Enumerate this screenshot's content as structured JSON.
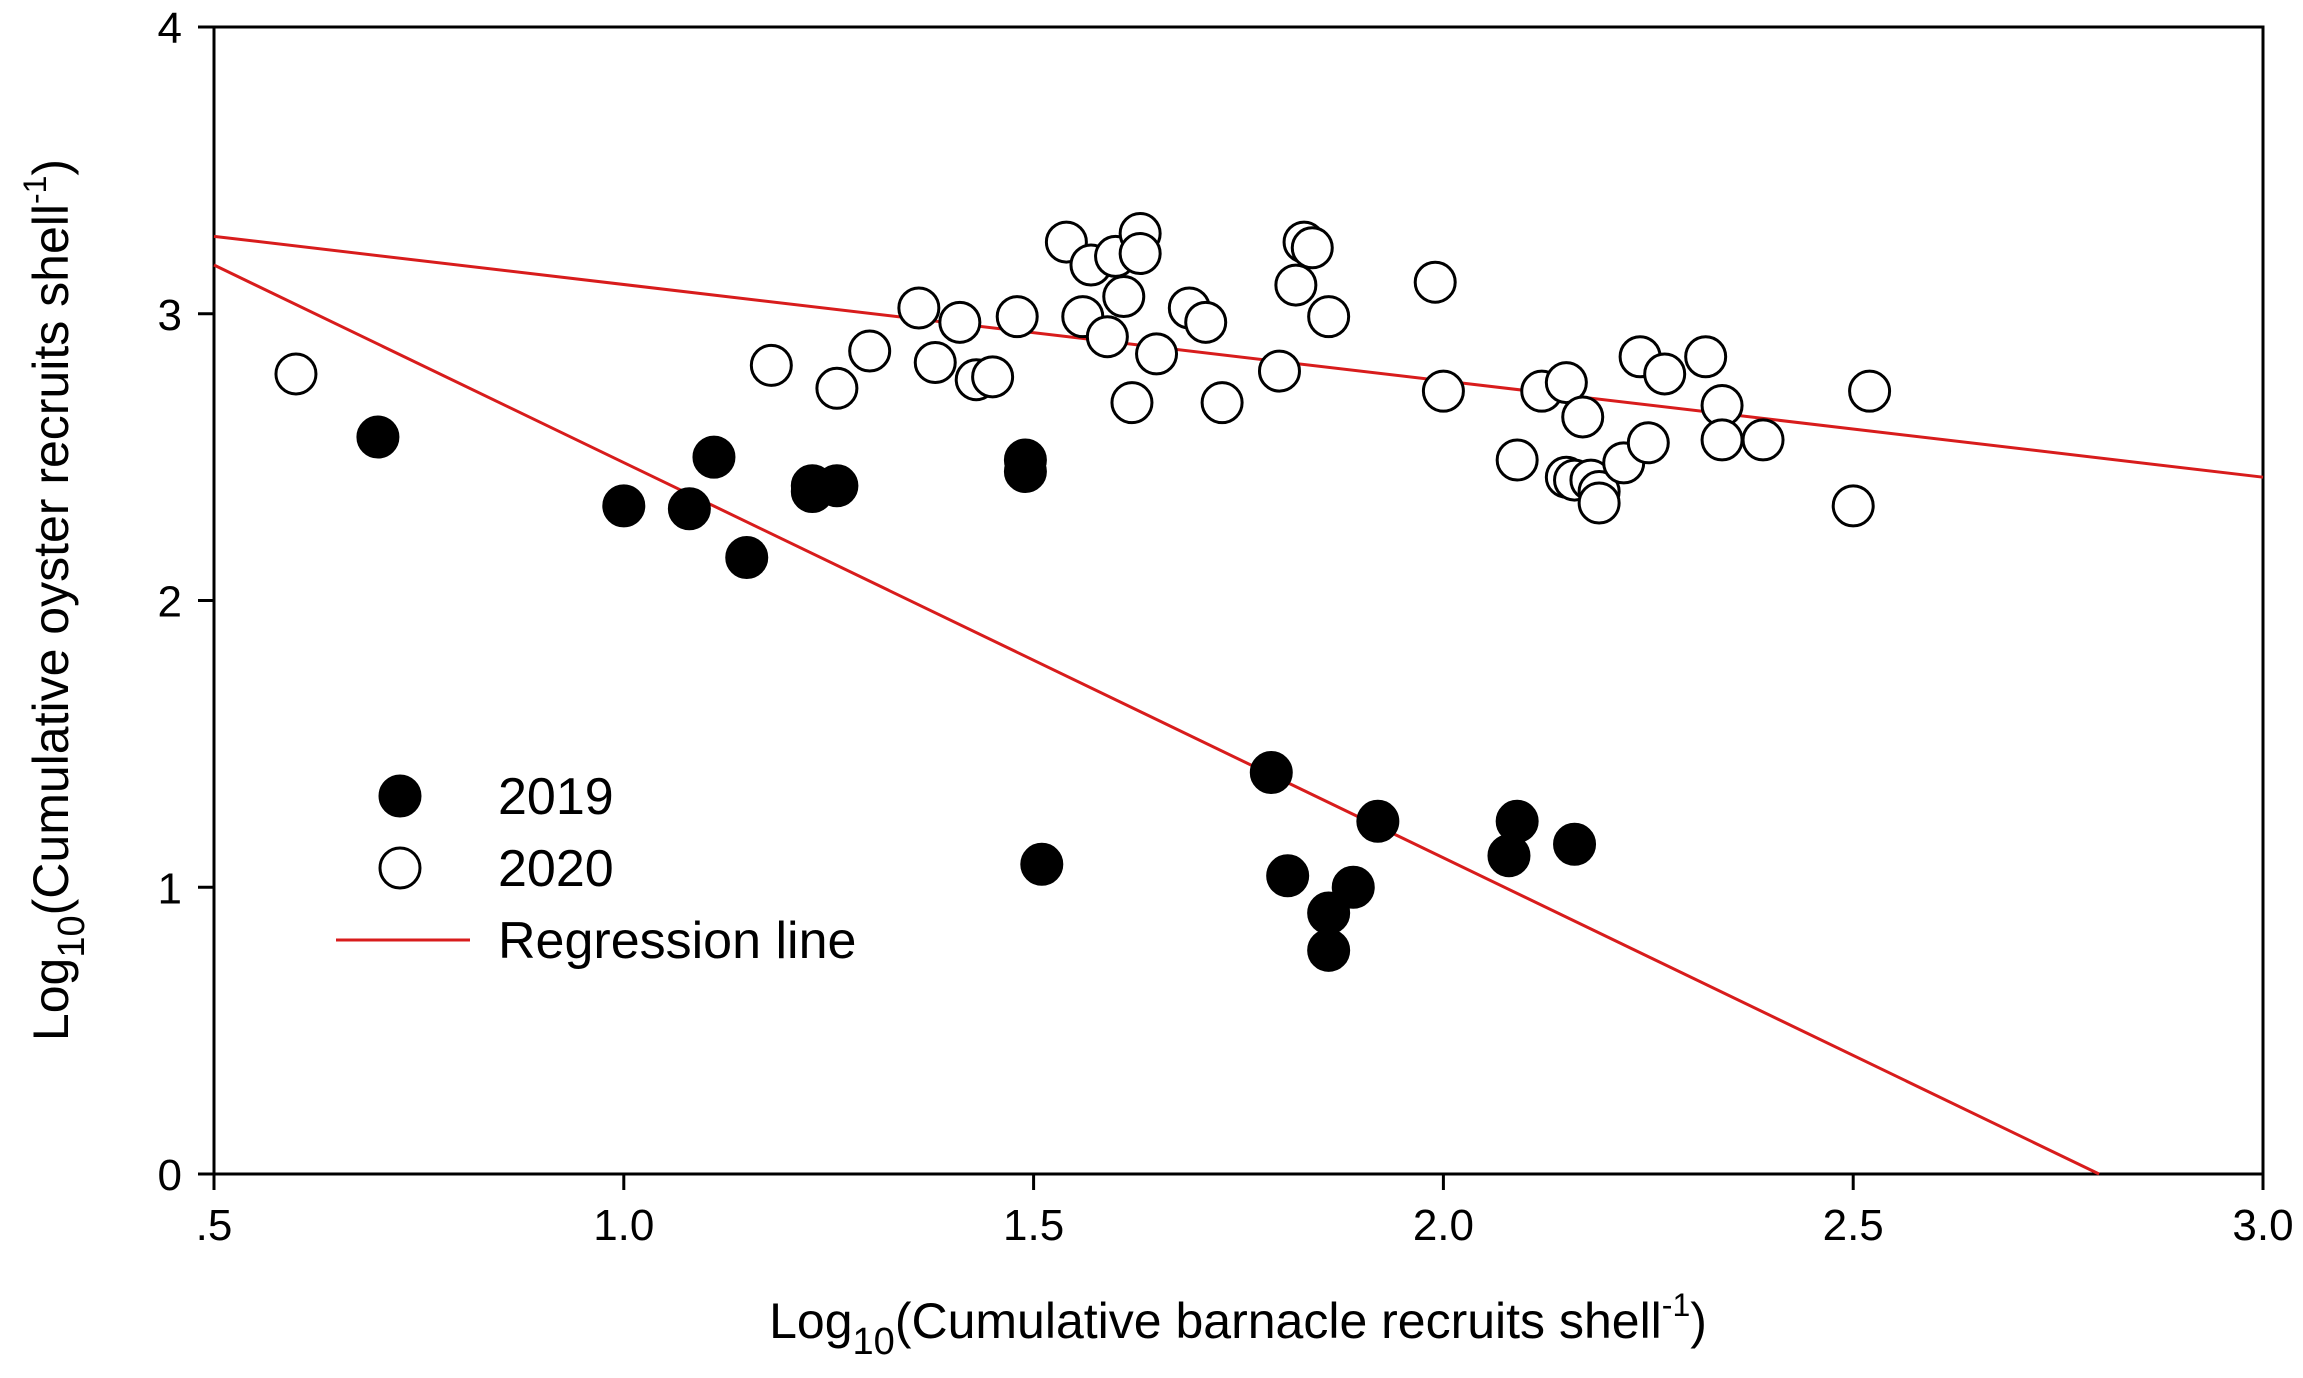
{
  "chart_data": {
    "type": "scatter",
    "title": "",
    "xlabel": {
      "prefix": "Log",
      "subscript": "10",
      "main": "(Cumulative barnacle recruits shell",
      "superscript": "-1",
      "suffix": ")"
    },
    "ylabel": {
      "prefix": "Log",
      "subscript": "10",
      "main": "(Cumulative oyster recruits shell",
      "superscript": "-1",
      "suffix": ")"
    },
    "xlim": [
      0.5,
      3.0
    ],
    "ylim": [
      0,
      4
    ],
    "xticks": [
      {
        "value": 0.5,
        "label": ".5"
      },
      {
        "value": 1.0,
        "label": "1.0"
      },
      {
        "value": 1.5,
        "label": "1.5"
      },
      {
        "value": 2.0,
        "label": "2.0"
      },
      {
        "value": 2.5,
        "label": "2.5"
      },
      {
        "value": 3.0,
        "label": "3.0"
      }
    ],
    "yticks": [
      {
        "value": 0,
        "label": "0"
      },
      {
        "value": 1,
        "label": "1"
      },
      {
        "value": 2,
        "label": "2"
      },
      {
        "value": 3,
        "label": "3"
      },
      {
        "value": 4,
        "label": "4"
      }
    ],
    "grid": false,
    "legend_position": "lower-left",
    "series": [
      {
        "name": "2019",
        "marker": "filled-circle",
        "color": "#000000",
        "points": [
          [
            0.7,
            2.57
          ],
          [
            1.0,
            2.33
          ],
          [
            1.08,
            2.32
          ],
          [
            1.11,
            2.5
          ],
          [
            1.15,
            2.15
          ],
          [
            1.23,
            2.38
          ],
          [
            1.23,
            2.4
          ],
          [
            1.26,
            2.4
          ],
          [
            1.49,
            2.49
          ],
          [
            1.49,
            2.45
          ],
          [
            1.51,
            1.08
          ],
          [
            1.79,
            1.4
          ],
          [
            1.81,
            1.04
          ],
          [
            1.86,
            0.91
          ],
          [
            1.86,
            0.78
          ],
          [
            1.89,
            1.0
          ],
          [
            1.92,
            1.23
          ],
          [
            2.08,
            1.11
          ],
          [
            2.09,
            1.23
          ],
          [
            2.16,
            1.15
          ]
        ]
      },
      {
        "name": "2020",
        "marker": "open-circle",
        "color": "#000000",
        "points": [
          [
            0.6,
            2.79
          ],
          [
            1.18,
            2.82
          ],
          [
            1.26,
            2.74
          ],
          [
            1.3,
            2.87
          ],
          [
            1.36,
            3.02
          ],
          [
            1.38,
            2.83
          ],
          [
            1.41,
            2.97
          ],
          [
            1.43,
            2.77
          ],
          [
            1.45,
            2.78
          ],
          [
            1.48,
            2.99
          ],
          [
            1.54,
            3.25
          ],
          [
            1.56,
            2.99
          ],
          [
            1.57,
            3.17
          ],
          [
            1.59,
            2.92
          ],
          [
            1.6,
            3.2
          ],
          [
            1.61,
            3.06
          ],
          [
            1.62,
            2.69
          ],
          [
            1.63,
            3.28
          ],
          [
            1.63,
            3.21
          ],
          [
            1.65,
            2.86
          ],
          [
            1.69,
            3.02
          ],
          [
            1.71,
            2.97
          ],
          [
            1.73,
            2.69
          ],
          [
            1.8,
            2.8
          ],
          [
            1.82,
            3.1
          ],
          [
            1.83,
            3.25
          ],
          [
            1.84,
            3.23
          ],
          [
            1.86,
            2.99
          ],
          [
            1.99,
            3.11
          ],
          [
            2.0,
            2.73
          ],
          [
            2.09,
            2.49
          ],
          [
            2.12,
            2.73
          ],
          [
            2.15,
            2.76
          ],
          [
            2.15,
            2.43
          ],
          [
            2.16,
            2.42
          ],
          [
            2.17,
            2.64
          ],
          [
            2.18,
            2.42
          ],
          [
            2.19,
            2.38
          ],
          [
            2.19,
            2.34
          ],
          [
            2.22,
            2.48
          ],
          [
            2.24,
            2.85
          ],
          [
            2.25,
            2.55
          ],
          [
            2.27,
            2.79
          ],
          [
            2.32,
            2.85
          ],
          [
            2.34,
            2.68
          ],
          [
            2.34,
            2.56
          ],
          [
            2.39,
            2.56
          ],
          [
            2.5,
            2.33
          ],
          [
            2.52,
            2.73
          ]
        ]
      }
    ],
    "regression_lines": [
      {
        "series": "2019",
        "color": "#d81c1c",
        "x": [
          0.5,
          2.8
        ],
        "y": [
          3.17,
          0.0
        ]
      },
      {
        "series": "2020",
        "color": "#d81c1c",
        "x": [
          0.5,
          3.0
        ],
        "y": [
          3.27,
          2.43
        ]
      }
    ],
    "legend": [
      {
        "label": "2019",
        "marker": "filled-circle"
      },
      {
        "label": "2020",
        "marker": "open-circle"
      },
      {
        "label": "Regression line",
        "marker": "line",
        "color": "#d81c1c"
      }
    ]
  }
}
